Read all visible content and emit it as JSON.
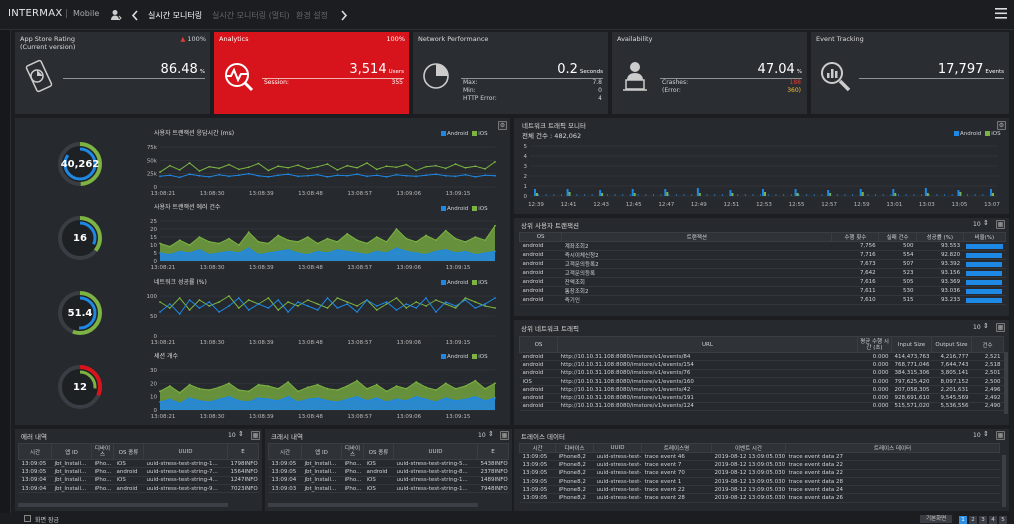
{
  "header": {
    "logo": "INTERMAX",
    "logo_sub": "Mobile",
    "tabs": [
      "실시간 모니터링",
      "실시간 모니터링 (멀티)",
      "환경 설정"
    ]
  },
  "cards": {
    "appstore": {
      "title1": "App Store Rating",
      "title2": "(Current version)",
      "pct": "100%",
      "value": "86.48",
      "unit": "%"
    },
    "analytics": {
      "title": "Analytics",
      "pct": "100%",
      "value": "3,514",
      "unit": "Users",
      "session_label": "Session:",
      "session_value": "355"
    },
    "network": {
      "title": "Network Performance",
      "value": "0.2",
      "unit": "Seconds",
      "max_label": "Max:",
      "max_value": "7.8",
      "min_label": "Min:",
      "min_value": "0",
      "http_label": "HTTP Error:",
      "http_value": "4"
    },
    "availability": {
      "title": "Availability",
      "value": "47.04",
      "unit": "%",
      "crashes_label": "Crashes:",
      "crashes_value": "188",
      "error_label": "(Error:",
      "error_value": "360)"
    },
    "event": {
      "title": "Event Tracking",
      "value": "17,797",
      "unit": "Events"
    }
  },
  "gauges": [
    "40,262",
    "16",
    "51.4",
    "12"
  ],
  "legend": {
    "android": "Android",
    "ios": "iOS"
  },
  "charts": [
    {
      "title": "사용자 트랜잭션 응답시간 (ms)",
      "yticks": [
        "75k",
        "50k",
        "25k",
        "0"
      ],
      "ylim": [
        0,
        75000
      ]
    },
    {
      "title": "사용자 트랜잭션 에러 건수",
      "yticks": [
        "25",
        "20",
        "15",
        "10",
        "5",
        "0"
      ],
      "ylim": [
        0,
        25
      ]
    },
    {
      "title": "네트워크 성공률 (%)",
      "yticks": [
        "100",
        "50",
        "0"
      ],
      "ylim": [
        0,
        100
      ]
    },
    {
      "title": "세션 개수",
      "yticks": [
        "30",
        "20",
        "10",
        "0"
      ],
      "ylim": [
        0,
        30
      ]
    }
  ],
  "chart_xticks": [
    "13:08:21",
    "13:08:30",
    "13:08:39",
    "13:08:48",
    "13:08:57",
    "13:09:06",
    "13:09:15"
  ],
  "chart_data": [
    {
      "type": "line",
      "title": "사용자 트랜잭션 응답시간 (ms)",
      "ylim": [
        0,
        75000
      ],
      "series": [
        {
          "name": "Android",
          "values": [
            20000,
            22000,
            18000,
            24000,
            21000,
            19000,
            23000,
            20000,
            22000,
            25000,
            21000,
            19000,
            22000,
            24000,
            20000,
            21000,
            23000,
            19000,
            22000,
            21000,
            24000,
            20000,
            22000,
            19000,
            23000,
            21000,
            20000,
            22000,
            24000,
            21000,
            20000,
            23000,
            19000,
            22000,
            21000
          ]
        },
        {
          "name": "iOS",
          "values": [
            28000,
            40000,
            32000,
            45000,
            30000,
            38000,
            35000,
            42000,
            33000,
            37000,
            44000,
            31000,
            39000,
            36000,
            41000,
            34000,
            38000,
            43000,
            32000,
            40000,
            36000,
            45000,
            33000,
            39000,
            37000,
            42000,
            31000,
            38000,
            40000,
            35000,
            43000,
            36000,
            39000,
            34000,
            47000
          ]
        }
      ]
    },
    {
      "type": "area",
      "title": "사용자 트랜잭션 에러 건수",
      "ylim": [
        0,
        25
      ],
      "series": [
        {
          "name": "Android",
          "values": [
            5,
            4,
            6,
            5,
            7,
            4,
            5,
            6,
            5,
            8,
            4,
            5,
            6,
            7,
            5,
            4,
            6,
            5,
            7,
            6,
            5,
            4,
            6,
            5,
            8,
            6,
            5,
            4,
            6,
            7,
            5,
            6,
            4,
            5,
            6
          ]
        },
        {
          "name": "iOS",
          "values": [
            11,
            9,
            13,
            10,
            15,
            12,
            11,
            14,
            10,
            18,
            12,
            11,
            16,
            13,
            12,
            15,
            11,
            14,
            12,
            17,
            13,
            11,
            15,
            12,
            20,
            14,
            12,
            16,
            13,
            19,
            14,
            12,
            15,
            13,
            22
          ]
        }
      ]
    },
    {
      "type": "line",
      "title": "네트워크 성공률 (%)",
      "ylim": [
        0,
        100
      ],
      "series": [
        {
          "name": "Android",
          "values": [
            60,
            80,
            55,
            90,
            70,
            85,
            60,
            75,
            95,
            65,
            80,
            70,
            90,
            60,
            85,
            75,
            65,
            95,
            70,
            80,
            60,
            90,
            75,
            85,
            65,
            80,
            70,
            95,
            60,
            85,
            75,
            90,
            70,
            80,
            95
          ]
        },
        {
          "name": "iOS",
          "values": [
            85,
            70,
            95,
            65,
            90,
            75,
            85,
            100,
            70,
            90,
            80,
            95,
            65,
            85,
            75,
            90,
            80,
            70,
            95,
            85,
            75,
            90,
            65,
            80,
            95,
            70,
            85,
            75,
            90,
            80,
            70,
            95,
            85,
            75,
            70
          ]
        }
      ]
    },
    {
      "type": "area",
      "title": "세션 개수",
      "ylim": [
        0,
        30
      ],
      "series": [
        {
          "name": "Android",
          "values": [
            6,
            8,
            5,
            9,
            7,
            6,
            8,
            10,
            7,
            6,
            9,
            8,
            7,
            10,
            6,
            8,
            9,
            7,
            6,
            8,
            10,
            7,
            9,
            6,
            8,
            7,
            10,
            8,
            6,
            9,
            7,
            8,
            10,
            7,
            9
          ]
        },
        {
          "name": "iOS",
          "values": [
            14,
            18,
            13,
            19,
            16,
            15,
            17,
            20,
            15,
            14,
            19,
            18,
            16,
            21,
            14,
            17,
            19,
            16,
            15,
            18,
            22,
            16,
            19,
            14,
            18,
            16,
            21,
            17,
            15,
            20,
            16,
            18,
            22,
            16,
            20
          ]
        }
      ]
    },
    {
      "type": "bar",
      "title": "네트워크 트래픽 모니터",
      "ylim": [
        0,
        5
      ],
      "categories": [
        "12:39",
        "12:41",
        "12:43",
        "12:45",
        "12:47",
        "12:49",
        "12:51",
        "12:53",
        "12:55",
        "12:57",
        "12:59",
        "13:01",
        "13:03",
        "13:05",
        "13:07"
      ],
      "series": [
        {
          "name": "Android",
          "values": [
            0.7,
            0.7,
            0.6,
            0.7,
            0.7,
            0.8,
            0.6,
            0.7,
            0.7,
            0.6,
            0.7,
            0.7,
            0.8,
            0.6,
            0.7
          ]
        },
        {
          "name": "iOS",
          "values": [
            0.3,
            0.4,
            0.3,
            0.3,
            0.4,
            0.3,
            0.3,
            0.4,
            0.3,
            0.3,
            0.4,
            0.3,
            0.3,
            0.4,
            0.3
          ]
        }
      ]
    }
  ],
  "traffic": {
    "title": "네트워크 트래픽 모니터",
    "total": "전체 건수 : 482,062",
    "yticks": [
      "5",
      "4",
      "3",
      "2",
      "1",
      "0"
    ]
  },
  "top_tx": {
    "title": "상위 사용자 트랜잭션",
    "page_size": "10",
    "headers": [
      "OS",
      "트랜잭션",
      "수행 횟수",
      "실패 건수",
      "성공률 (%)",
      "비율(%)"
    ],
    "rows": [
      [
        "android",
        "계좌조회2",
        "7,756",
        "500",
        "93.553"
      ],
      [
        "android",
        "즉시이체신청2",
        "7,716",
        "554",
        "92.820"
      ],
      [
        "android",
        "고객문의등록2",
        "7,673",
        "507",
        "93.392"
      ],
      [
        "android",
        "고객문의등록",
        "7,642",
        "523",
        "93.156"
      ],
      [
        "android",
        "잔액조회",
        "7,616",
        "505",
        "93.369"
      ],
      [
        "android",
        "통장조회2",
        "7,611",
        "530",
        "93.036"
      ],
      [
        "android",
        "즉기인",
        "7,610",
        "515",
        "93.233"
      ]
    ],
    "bars": [
      1.0,
      0.99,
      0.99,
      0.98,
      0.98,
      0.98,
      0.98
    ]
  },
  "top_net": {
    "title": "상위 네트워크 트래픽",
    "page_size": "10",
    "headers": [
      "OS",
      "URL",
      "평균 수행 시간 (초)",
      "Input Size",
      "Output Size",
      "건수"
    ],
    "rows": [
      [
        "android",
        "http://10.10.31.108:8080/imstore/v1/events/84",
        "0.000",
        "414,473,763",
        "4,216,777",
        "2,521"
      ],
      [
        "android",
        "http://10.10.31.108:8080/imstore/v1/events/154",
        "0.000",
        "768,771,046",
        "7,644,743",
        "2,518"
      ],
      [
        "android",
        "http://10.10.31.108:8080/imstore/v1/events/76",
        "0.000",
        "384,315,306",
        "3,805,141",
        "2,501"
      ],
      [
        "iOS",
        "http://10.10.31.108:8080/imstore/v1/events/160",
        "0.000",
        "797,625,420",
        "8,097,152",
        "2,500"
      ],
      [
        "android",
        "http://10.10.31.108:8080/imstore/v1/events/42",
        "0.000",
        "207,058,305",
        "2,201,631",
        "2,496"
      ],
      [
        "android",
        "http://10.10.31.108:8080/imstore/v1/events/191",
        "0.000",
        "928,691,610",
        "9,545,569",
        "2,492"
      ],
      [
        "android",
        "http://10.10.31.108:8080/imstore/v1/events/124",
        "0.000",
        "515,571,020",
        "5,536,556",
        "2,490"
      ]
    ]
  },
  "errors": {
    "title": "에러 내역",
    "page_size": "10",
    "headers": [
      "시간",
      "앱 ID",
      "디바이스",
      "OS 종류",
      "UUID",
      "E"
    ],
    "rows": [
      [
        "13:09:05",
        "jbt_Install...",
        "iPho...",
        "iOS",
        "uuid-stress-test-string-1...",
        "1798INFO"
      ],
      [
        "13:09:05",
        "jbt_Install...",
        "iPho...",
        "android",
        "uuid-stress-test-string-7...",
        "1564INFO"
      ],
      [
        "13:09:04",
        "jbt_Install...",
        "iPho...",
        "iOS",
        "uuid-stress-test-string-4...",
        "1247INFO"
      ],
      [
        "13:09:04",
        "jbt_Install...",
        "iPho...",
        "android",
        "uuid-stress-test-string-9...",
        "7023INFO"
      ]
    ]
  },
  "crashes": {
    "title": "크래시 내역",
    "page_size": "10",
    "headers": [
      "시간",
      "앱 ID",
      "디바이스",
      "OS 종류",
      "UUID",
      "E"
    ],
    "rows": [
      [
        "13:09:05",
        "jbt_Install...",
        "iPho...",
        "iOS",
        "uuid-stress-test-string-5...",
        "5438INFO"
      ],
      [
        "13:09:05",
        "jbt_Install...",
        "iPho...",
        "android",
        "uuid-stress-test-string-8...",
        "2378INFO"
      ],
      [
        "13:09:04",
        "jbt_Install...",
        "iPho...",
        "iOS",
        "uuid-stress-test-string-1...",
        "1489INFO"
      ],
      [
        "13:09:03",
        "jbt_Install...",
        "iPho...",
        "iOS",
        "uuid-stress-test-string-1...",
        "7948INFO"
      ]
    ]
  },
  "traces": {
    "title": "트레이스 데이터",
    "page_size": "10",
    "headers": [
      "시간",
      "디바이스",
      "UUID",
      "트레이스명",
      "이벤트 시간",
      "트레이스 데이터"
    ],
    "rows": [
      [
        "13:09:05",
        "iPhone8,2",
        "uuid-stress-test-...",
        "trace event 46",
        "2019-08-12 13:09:05.030",
        "trace event data 27"
      ],
      [
        "13:09:05",
        "iPhone8,2",
        "uuid-stress-test-...",
        "trace event 7",
        "2019-08-12 13:09:05.030",
        "trace event data 22"
      ],
      [
        "13:09:05",
        "iPhone8,2",
        "uuid-stress-test-...",
        "trace event 70",
        "2019-08-12 13:09:05.030",
        "trace event data 22"
      ],
      [
        "13:09:05",
        "iPhone8,2",
        "uuid-stress-test-...",
        "trace event 1",
        "2019-08-12 13:09:05.030",
        "trace event data 28"
      ],
      [
        "13:09:05",
        "iPhone8,2",
        "uuid-stress-test-...",
        "trace event 22",
        "2019-08-12 13:09:05.030",
        "trace event data 24"
      ],
      [
        "13:09:05",
        "iPhone8,2",
        "uuid-stress-test-...",
        "trace event 28",
        "2019-08-12 13:09:05.030",
        "trace event data 26"
      ]
    ]
  },
  "footer": {
    "checkbox_label": "화면 잠금",
    "basic_button": "기본화면",
    "pages": [
      "1",
      "2",
      "3",
      "4",
      "5"
    ]
  },
  "colors": {
    "android": "#1e88e5",
    "ios": "#7cb342",
    "red": "#d7141b"
  }
}
